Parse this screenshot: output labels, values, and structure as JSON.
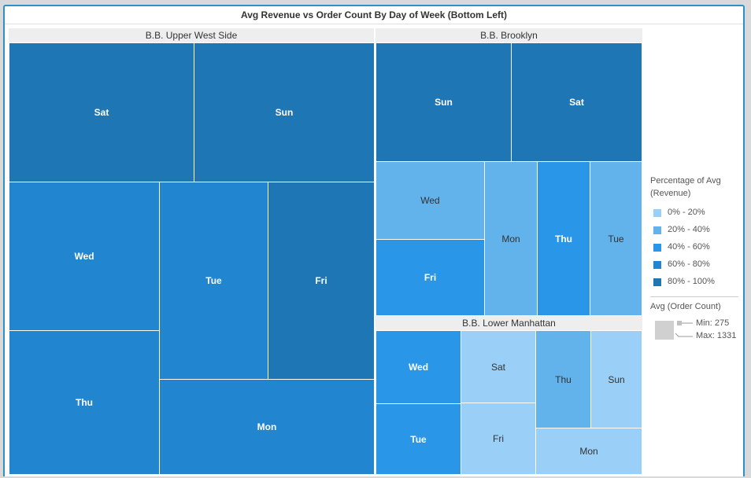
{
  "chart_data": {
    "type": "treemap",
    "title": "Avg Revenue vs Order Count By Day of Week (Bottom Left)",
    "groups": [
      {
        "name": "B.B. Upper West Side",
        "cells": [
          {
            "day": "Sat",
            "bucket": 4
          },
          {
            "day": "Sun",
            "bucket": 4
          },
          {
            "day": "Wed",
            "bucket": 3
          },
          {
            "day": "Tue",
            "bucket": 3
          },
          {
            "day": "Fri",
            "bucket": 4
          },
          {
            "day": "Thu",
            "bucket": 3
          },
          {
            "day": "Mon",
            "bucket": 3
          }
        ]
      },
      {
        "name": "B.B. Brooklyn",
        "cells": [
          {
            "day": "Sun",
            "bucket": 4
          },
          {
            "day": "Sat",
            "bucket": 4
          },
          {
            "day": "Wed",
            "bucket": 1
          },
          {
            "day": "Fri",
            "bucket": 2
          },
          {
            "day": "Mon",
            "bucket": 1
          },
          {
            "day": "Thu",
            "bucket": 2
          },
          {
            "day": "Tue",
            "bucket": 1
          }
        ]
      },
      {
        "name": "B.B. Lower Manhattan",
        "cells": [
          {
            "day": "Wed",
            "bucket": 2
          },
          {
            "day": "Tue",
            "bucket": 2
          },
          {
            "day": "Sat",
            "bucket": 0
          },
          {
            "day": "Fri",
            "bucket": 0
          },
          {
            "day": "Thu",
            "bucket": 1
          },
          {
            "day": "Sun",
            "bucket": 0
          },
          {
            "day": "Mon",
            "bucket": 0
          }
        ]
      }
    ],
    "color_legend": {
      "title": "Percentage of Avg (Revenue)",
      "items": [
        {
          "label": "0% - 20%",
          "color": "#9ad0f8"
        },
        {
          "label": "20% - 40%",
          "color": "#62b2ec"
        },
        {
          "label": "40% - 60%",
          "color": "#2a96e8"
        },
        {
          "label": "60% - 80%",
          "color": "#2285d0"
        },
        {
          "label": "80% - 100%",
          "color": "#1f76b4"
        }
      ]
    },
    "size_legend": {
      "title": "Avg (Order Count)",
      "min_label": "Min: 275",
      "max_label": "Max: 1331",
      "min": 275,
      "max": 1331
    }
  }
}
